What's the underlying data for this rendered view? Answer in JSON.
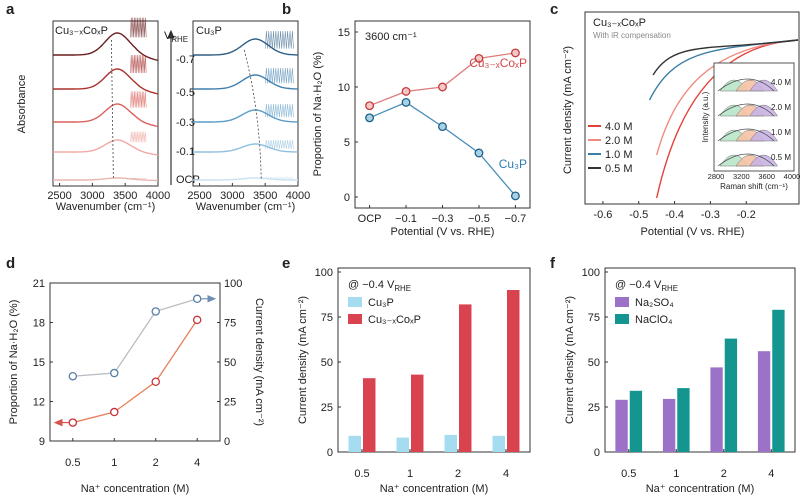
{
  "panel_letters": [
    "a",
    "b",
    "c",
    "d",
    "e",
    "f"
  ],
  "chart_data": [
    {
      "panel": "a",
      "type": "line",
      "ylabel": "Absorbance",
      "xlabel": "Wavenumber (cm⁻¹)",
      "xlim": [
        2400,
        4000
      ],
      "xticks": [
        "2500",
        "3000",
        "3500",
        "4000"
      ],
      "sub_titles": [
        "Cu₃₋ₓCoₓP",
        "Cu₃P"
      ],
      "vrhe_label": "V",
      "vrhe_sub": "RHE",
      "potential_labels": [
        "-0.7",
        "-0.5",
        "-0.3",
        "-0.1",
        "OCP"
      ],
      "series_colors": [
        "#6b1f1f",
        "#a8322e",
        "#d9625b",
        "#f0a9a3",
        "#e8b4b0"
      ],
      "cu3p_colors": [
        "#2f5f86",
        "#3f7fae",
        "#5c9cc8",
        "#8fbfdc",
        "#c9e2f0"
      ]
    },
    {
      "panel": "b",
      "type": "line",
      "title": "3600 cm⁻¹",
      "ylabel": "Proportion of Na·H₂O (%)",
      "xlabel": "Potential (V vs. RHE)",
      "categories": [
        "OCP",
        "−0.1",
        "−0.3",
        "−0.5",
        "−0.7"
      ],
      "ylim": [
        0,
        15
      ],
      "yticks": [
        0,
        5,
        10,
        15
      ],
      "series": [
        {
          "name": "Cu₃₋ₓCoₓP",
          "color": "#e07a7a",
          "values": [
            8.3,
            9.6,
            10.0,
            12.6,
            13.1
          ]
        },
        {
          "name": "Cu₃P",
          "color": "#4a8fb8",
          "values": [
            7.2,
            8.6,
            6.4,
            4.0,
            0.1
          ]
        }
      ]
    },
    {
      "panel": "c",
      "type": "line",
      "title": "Cu₃₋ₓCoₓP",
      "subtitle": "With iR compensation",
      "ylabel": "Current density (mA cm⁻²)",
      "xlabel": "Potential (V vs. RHE)",
      "xlim": [
        -0.65,
        -0.05
      ],
      "xticks": [
        "-0.6",
        "-0.5",
        "-0.4",
        "-0.3",
        "-0.2"
      ],
      "legend": [
        {
          "name": "4.0 M",
          "color": "#e3413a"
        },
        {
          "name": "2.0 M",
          "color": "#f08a7e"
        },
        {
          "name": "1.0 M",
          "color": "#3a7ea6"
        },
        {
          "name": "0.5 M",
          "color": "#333333"
        }
      ],
      "inset": {
        "ylabel": "Intensity (a.u.)",
        "xlabel": "Raman shift (cm⁻¹)",
        "xticks": [
          "2800",
          "3200",
          "3600",
          "4000"
        ],
        "labels": [
          "4.0 M",
          "2.0 M",
          "1.0 M",
          "0.5 M"
        ]
      }
    },
    {
      "panel": "d",
      "type": "line",
      "ylabel_left": "Proportion of Na·H₂O (%)",
      "ylabel_right": "Current density (mA cm⁻²)",
      "xlabel": "Na⁺ concentration (M)",
      "categories": [
        "0.5",
        "1",
        "2",
        "4"
      ],
      "ylim_left": [
        9,
        21
      ],
      "yticks_left": [
        9,
        12,
        15,
        18,
        21
      ],
      "ylim_right": [
        0,
        100
      ],
      "yticks_right": [
        0,
        25,
        50,
        75,
        100
      ],
      "series": [
        {
          "name": "proportion",
          "axis": "left",
          "color": "#d9534f",
          "values": [
            10.4,
            11.2,
            13.5,
            18.2
          ]
        },
        {
          "name": "current density",
          "axis": "right",
          "color": "#9aa0a6",
          "values": [
            41,
            43,
            82,
            90
          ]
        }
      ]
    },
    {
      "panel": "e",
      "type": "bar",
      "title": "@ −0.4 V",
      "title_sub": "RHE",
      "ylabel": "Current density (mA cm⁻²)",
      "xlabel": "Na⁺ concentration (M)",
      "categories": [
        "0.5",
        "1",
        "2",
        "4"
      ],
      "ylim": [
        0,
        100
      ],
      "yticks": [
        0,
        25,
        50,
        75,
        100
      ],
      "series": [
        {
          "name": "Cu₃P",
          "color": "#a6dcef",
          "values": [
            9,
            8,
            9.5,
            9
          ]
        },
        {
          "name": "Cu₃₋ₓCoₓP",
          "color": "#d9434f",
          "values": [
            41,
            43,
            82,
            90
          ]
        }
      ]
    },
    {
      "panel": "f",
      "type": "bar",
      "title": "@ −0.4 V",
      "title_sub": "RHE",
      "ylabel": "Current density (mA cm⁻²)",
      "xlabel": "Na⁺ concentration (M)",
      "categories": [
        "0.5",
        "1",
        "2",
        "4"
      ],
      "ylim": [
        0,
        100
      ],
      "yticks": [
        0,
        25,
        50,
        75,
        100
      ],
      "series": [
        {
          "name": "Na₂SO₄",
          "color": "#9b72c7",
          "values": [
            29,
            29.5,
            47,
            56
          ]
        },
        {
          "name": "NaClO₄",
          "color": "#14958f",
          "values": [
            34,
            35.5,
            63,
            79
          ]
        }
      ]
    }
  ]
}
